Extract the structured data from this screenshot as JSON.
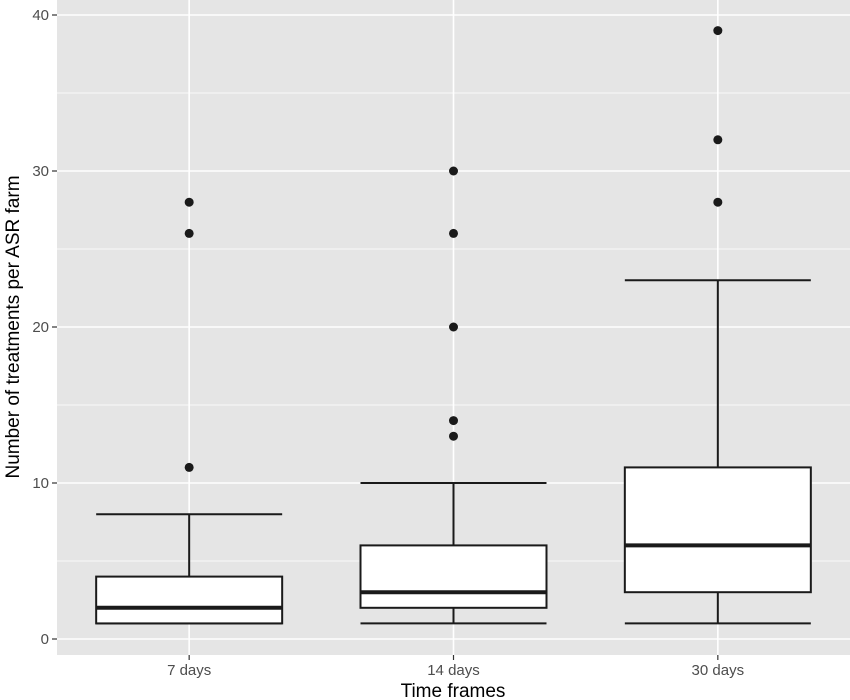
{
  "chart_data": {
    "type": "box",
    "title": "",
    "xlabel": "Time frames",
    "ylabel": "Number of treatments per ASR farm",
    "categories": [
      "7 days",
      "14 days",
      "30 days"
    ],
    "ylim": [
      -1,
      40.1
    ],
    "yticks": [
      0,
      10,
      20,
      30,
      40
    ],
    "grid": true,
    "background": "#e5e5e5",
    "grid_color": "#ffffff",
    "boxes": [
      {
        "category": "7 days",
        "whisker_low": 1,
        "q1": 1,
        "median": 2,
        "q3": 4,
        "whisker_high": 8,
        "outliers": [
          11,
          26,
          28
        ]
      },
      {
        "category": "14 days",
        "whisker_low": 1,
        "q1": 2,
        "median": 3,
        "q3": 6,
        "whisker_high": 10,
        "outliers": [
          13,
          14,
          20,
          26,
          30
        ]
      },
      {
        "category": "30 days",
        "whisker_low": 1,
        "q1": 3,
        "median": 6,
        "q3": 11,
        "whisker_high": 23,
        "outliers": [
          28,
          32,
          39
        ]
      }
    ]
  }
}
